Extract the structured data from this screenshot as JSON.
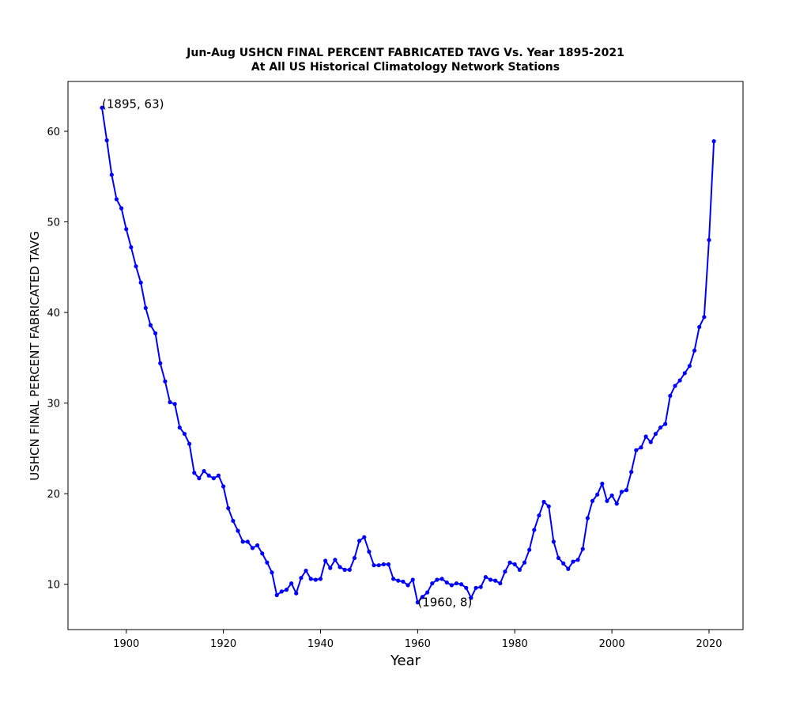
{
  "chart_data": {
    "type": "line",
    "title": "Jun-Aug USHCN FINAL PERCENT FABRICATED TAVG Vs. Year 1895-2021",
    "subtitle": "At All US Historical Climatology Network Stations",
    "xlabel": "Year",
    "ylabel": "USHCN FINAL PERCENT FABRICATED TAVG",
    "xlim": [
      1888,
      2027
    ],
    "ylim": [
      5,
      65.5
    ],
    "xticks": [
      1900,
      1920,
      1940,
      1960,
      1980,
      2000,
      2020
    ],
    "yticks": [
      10,
      20,
      30,
      40,
      50,
      60
    ],
    "grid": false,
    "series": [
      {
        "color": "#0000ff",
        "marker": "circle",
        "x": [
          1895,
          1896,
          1897,
          1898,
          1899,
          1900,
          1901,
          1902,
          1903,
          1904,
          1905,
          1906,
          1907,
          1908,
          1909,
          1910,
          1911,
          1912,
          1913,
          1914,
          1915,
          1916,
          1917,
          1918,
          1919,
          1920,
          1921,
          1922,
          1923,
          1924,
          1925,
          1926,
          1927,
          1928,
          1929,
          1930,
          1931,
          1932,
          1933,
          1934,
          1935,
          1936,
          1937,
          1938,
          1939,
          1940,
          1941,
          1942,
          1943,
          1944,
          1945,
          1946,
          1947,
          1948,
          1949,
          1950,
          1951,
          1952,
          1953,
          1954,
          1955,
          1956,
          1957,
          1958,
          1959,
          1960,
          1961,
          1962,
          1963,
          1964,
          1965,
          1966,
          1967,
          1968,
          1969,
          1970,
          1971,
          1972,
          1973,
          1974,
          1975,
          1976,
          1977,
          1978,
          1979,
          1980,
          1981,
          1982,
          1983,
          1984,
          1985,
          1986,
          1987,
          1988,
          1989,
          1990,
          1991,
          1992,
          1993,
          1994,
          1995,
          1996,
          1997,
          1998,
          1999,
          2000,
          2001,
          2002,
          2003,
          2004,
          2005,
          2006,
          2007,
          2008,
          2009,
          2010,
          2011,
          2012,
          2013,
          2014,
          2015,
          2016,
          2017,
          2018,
          2019,
          2020,
          2021
        ],
        "y": [
          62.6,
          59.0,
          55.2,
          52.5,
          51.5,
          49.2,
          47.2,
          45.1,
          43.3,
          40.5,
          38.6,
          37.7,
          34.4,
          32.4,
          30.1,
          29.9,
          27.3,
          26.6,
          25.5,
          22.3,
          21.7,
          22.5,
          22.0,
          21.7,
          22.0,
          20.8,
          18.4,
          17.0,
          15.9,
          14.7,
          14.7,
          14.0,
          14.3,
          13.4,
          12.4,
          11.3,
          8.8,
          9.2,
          9.4,
          10.1,
          9.0,
          10.7,
          11.5,
          10.6,
          10.5,
          10.6,
          12.6,
          11.8,
          12.7,
          11.9,
          11.6,
          11.6,
          12.9,
          14.8,
          15.2,
          13.6,
          12.1,
          12.1,
          12.2,
          12.2,
          10.6,
          10.4,
          10.3,
          9.9,
          10.5,
          8.0,
          8.6,
          9.1,
          10.1,
          10.5,
          10.6,
          10.2,
          9.9,
          10.1,
          10.0,
          9.6,
          8.5,
          9.6,
          9.7,
          10.8,
          10.5,
          10.4,
          10.1,
          11.4,
          12.4,
          12.2,
          11.6,
          12.4,
          13.8,
          16.0,
          17.6,
          19.1,
          18.6,
          14.7,
          12.9,
          12.3,
          11.7,
          12.5,
          12.7,
          13.9,
          17.3,
          19.2,
          19.9,
          21.1,
          19.2,
          19.8,
          18.9,
          20.2,
          20.4,
          22.4,
          24.8,
          25.1,
          26.3,
          25.7,
          26.6,
          27.3,
          27.7,
          30.8,
          31.9,
          32.5,
          33.3,
          34.1,
          35.8,
          38.4,
          39.5,
          48.0,
          58.9
        ]
      }
    ],
    "annotations": [
      {
        "text": "(1895, 63)",
        "x": 1895,
        "y": 63
      },
      {
        "text": "(1960, 8)",
        "x": 1960,
        "y": 8
      }
    ]
  }
}
